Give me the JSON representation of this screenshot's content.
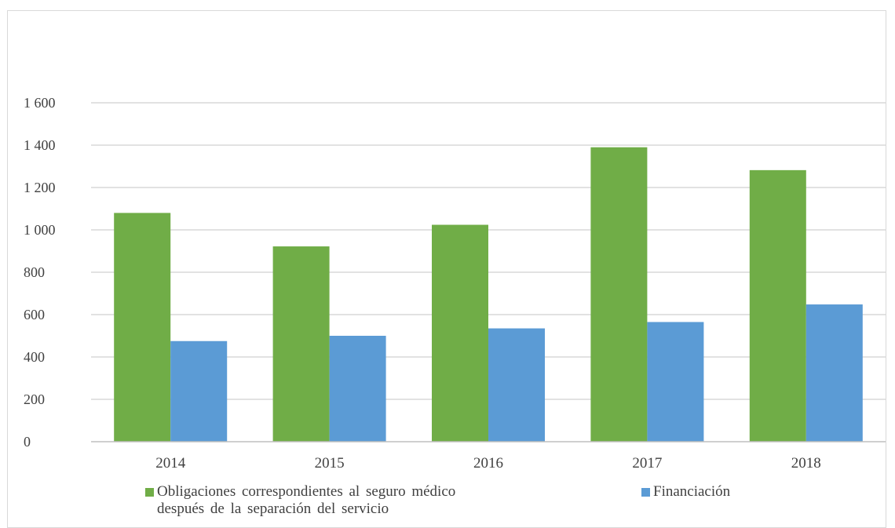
{
  "chart_data": {
    "type": "bar",
    "categories": [
      "2014",
      "2015",
      "2016",
      "2017",
      "2018"
    ],
    "series": [
      {
        "name": "Obligaciones correspondientes al seguro médico después de la separación del servicio",
        "name_lines": [
          "Obligaciones correspondientes al seguro médico",
          "después de la separación del servicio"
        ],
        "color": "#70ad47",
        "values": [
          1080,
          922,
          1024,
          1390,
          1282
        ]
      },
      {
        "name": "Financiación",
        "name_lines": [
          "Financiación"
        ],
        "color": "#5b9bd5",
        "values": [
          475,
          500,
          535,
          565,
          648
        ]
      }
    ],
    "yticks": [
      "0",
      "200",
      "400",
      "600",
      "800",
      "1 000",
      "1 200",
      "1 400",
      "1 600"
    ],
    "ylim": [
      0,
      1600
    ],
    "grid": true,
    "legend_position": "bottom"
  }
}
